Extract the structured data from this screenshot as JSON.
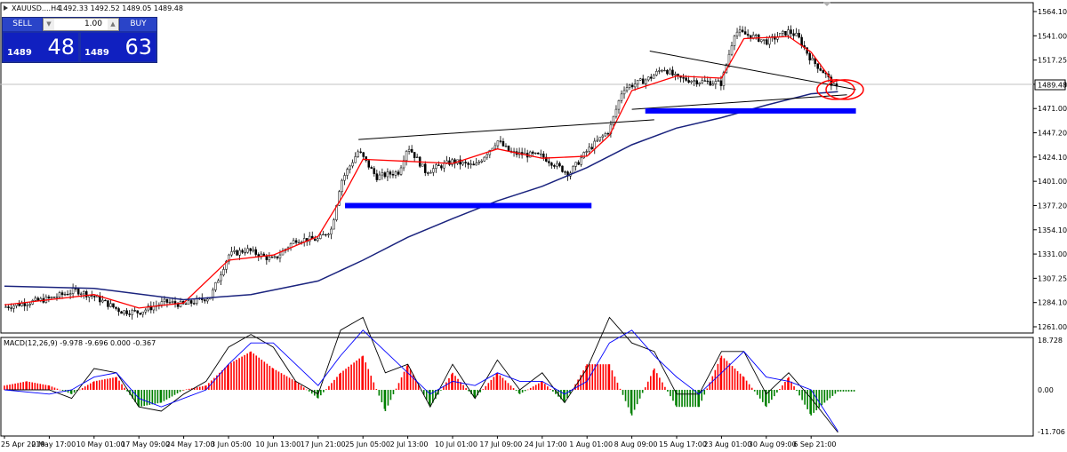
{
  "symbol_header": {
    "symbol": "XAUUSD....H4",
    "ohlc": "1492.33 1492.52 1489.05 1489.48"
  },
  "trade_panel": {
    "sell_label": "SELL",
    "buy_label": "BUY",
    "lot_value": "1.00",
    "sell_small": "1489",
    "sell_big": "48",
    "buy_small": "1489",
    "buy_big": "63"
  },
  "current_price_tag": "1489.48",
  "colors": {
    "fast_ma": "#ff0000",
    "slow_ma": "#1a237e",
    "trendline": "#000000",
    "support_zone": "#0000ff",
    "macd_positive": "#ff0000",
    "macd_negative": "#008000",
    "macd_line": "#000000",
    "signal_line": "#0000ff",
    "annotation": "#ff0000"
  },
  "chart_data": [
    {
      "type": "line",
      "title": "",
      "symbol": "XAUUSD",
      "timeframe": "H4",
      "ylim": [
        1261.0,
        1564.0
      ],
      "y_tick_labels": [
        "1564.10",
        "1541.00",
        "1517.25",
        "1494.10",
        "1471.00",
        "1447.20",
        "1424.10",
        "1401.00",
        "1377.20",
        "1354.10",
        "1331.00",
        "1307.25",
        "1284.10",
        "1261.00"
      ],
      "x_tick_labels": [
        "25 Apr 2019",
        "2 May 17:00",
        "10 May 01:00",
        "17 May 09:00",
        "24 May 17:00",
        "3 Jun 05:00",
        "10 Jun 13:00",
        "17 Jun 21:00",
        "25 Jun 05:00",
        "2 Jul 13:00",
        "10 Jul 01:00",
        "17 Jul 09:00",
        "24 Jul 17:00",
        "1 Aug 01:00",
        "8 Aug 09:00",
        "15 Aug 17:00",
        "23 Aug 01:00",
        "30 Aug 09:00",
        "6 Sep 21:00"
      ],
      "series": [],
      "price_path": [
        [
          0,
          1280
        ],
        [
          0.6,
          1285
        ],
        [
          1,
          1288
        ],
        [
          1.6,
          1296
        ],
        [
          2,
          1290
        ],
        [
          2.6,
          1276
        ],
        [
          3,
          1275
        ],
        [
          3.6,
          1285
        ],
        [
          4,
          1282
        ],
        [
          4.6,
          1290
        ],
        [
          5,
          1330
        ],
        [
          5.4,
          1335
        ],
        [
          6,
          1325
        ],
        [
          6.5,
          1345
        ],
        [
          7,
          1345
        ],
        [
          7.3,
          1355
        ],
        [
          7.5,
          1400
        ],
        [
          7.9,
          1430
        ],
        [
          8.3,
          1405
        ],
        [
          8.8,
          1410
        ],
        [
          9,
          1435
        ],
        [
          9.4,
          1410
        ],
        [
          10,
          1420
        ],
        [
          10.5,
          1415
        ],
        [
          11,
          1440
        ],
        [
          11.3,
          1428
        ],
        [
          12,
          1425
        ],
        [
          12.6,
          1408
        ],
        [
          13,
          1430
        ],
        [
          13.5,
          1450
        ],
        [
          13.8,
          1490
        ],
        [
          14.4,
          1500
        ],
        [
          14.7,
          1510
        ],
        [
          15,
          1500
        ],
        [
          15.5,
          1497
        ],
        [
          16,
          1495
        ],
        [
          16.3,
          1545
        ],
        [
          16.7,
          1540
        ],
        [
          17,
          1535
        ],
        [
          17.5,
          1545
        ],
        [
          17.7,
          1540
        ],
        [
          18,
          1518
        ],
        [
          18.3,
          1505
        ],
        [
          18.5,
          1492
        ],
        [
          18.6,
          1489.48
        ]
      ],
      "moving_averages": [
        {
          "kind": "fast",
          "values": [
            [
              0,
              1282
            ],
            [
              1,
              1287
            ],
            [
              2,
              1292
            ],
            [
              3,
              1279
            ],
            [
              4,
              1284
            ],
            [
              5,
              1325
            ],
            [
              6,
              1330
            ],
            [
              7,
              1348
            ],
            [
              7.6,
              1390
            ],
            [
              8,
              1422
            ],
            [
              9,
              1420
            ],
            [
              10,
              1418
            ],
            [
              11,
              1432
            ],
            [
              12,
              1423
            ],
            [
              13,
              1425
            ],
            [
              13.5,
              1445
            ],
            [
              14,
              1488
            ],
            [
              15,
              1502
            ],
            [
              16,
              1500
            ],
            [
              16.5,
              1538
            ],
            [
              17.5,
              1540
            ],
            [
              18,
              1525
            ],
            [
              18.5,
              1496
            ]
          ]
        },
        {
          "kind": "slow",
          "values": [
            [
              0,
              1300
            ],
            [
              2,
              1298
            ],
            [
              4,
              1287
            ],
            [
              5.5,
              1292
            ],
            [
              7,
              1305
            ],
            [
              8,
              1325
            ],
            [
              9,
              1347
            ],
            [
              10,
              1365
            ],
            [
              11,
              1382
            ],
            [
              12,
              1396
            ],
            [
              13,
              1414
            ],
            [
              14,
              1436
            ],
            [
              15,
              1452
            ],
            [
              16,
              1462
            ],
            [
              17,
              1474
            ],
            [
              18,
              1485
            ],
            [
              18.6,
              1487
            ]
          ]
        }
      ],
      "trendlines": [
        {
          "from": [
            7.9,
            1441
          ],
          "to": [
            14.5,
            1460
          ],
          "label": ""
        },
        {
          "from": [
            14.4,
            1526
          ],
          "to": [
            19.0,
            1489
          ],
          "label": ""
        },
        {
          "from": [
            14.0,
            1470
          ],
          "to": [
            18.8,
            1484
          ],
          "label": ""
        }
      ],
      "horizontal_zones": [
        {
          "y": 1377.5,
          "from": 7.6,
          "to": 13.1
        },
        {
          "y": 1468.5,
          "from": 14.3,
          "to": 19.0
        }
      ],
      "annotations": [
        {
          "shape": "ellipse",
          "at": [
            18.55,
            1489
          ],
          "label": ""
        },
        {
          "shape": "ellipse",
          "at": [
            18.75,
            1489
          ],
          "label": ""
        }
      ],
      "current_price": 1489.48
    },
    {
      "type": "bar",
      "title": "MACD(12,26,9) -9.978 -9.696 0.000 -0.367",
      "ylim": [
        -11.706,
        18.728
      ],
      "y_tick_labels": [
        "18.728",
        "0.00",
        "-11.706"
      ],
      "histogram": [
        [
          0,
          1
        ],
        [
          0.5,
          2
        ],
        [
          1,
          1
        ],
        [
          1.5,
          -1
        ],
        [
          2,
          2
        ],
        [
          2.5,
          3
        ],
        [
          3,
          -4
        ],
        [
          3.5,
          -3
        ],
        [
          4,
          0
        ],
        [
          4.5,
          1
        ],
        [
          5,
          6
        ],
        [
          5.5,
          9
        ],
        [
          6,
          5
        ],
        [
          6.5,
          2
        ],
        [
          7,
          -2
        ],
        [
          7.5,
          4
        ],
        [
          8,
          8
        ],
        [
          8.5,
          -5
        ],
        [
          9,
          6
        ],
        [
          9.5,
          -4
        ],
        [
          10,
          4
        ],
        [
          10.5,
          -2
        ],
        [
          11,
          4
        ],
        [
          11.5,
          -1
        ],
        [
          12,
          2
        ],
        [
          12.5,
          -3
        ],
        [
          13,
          6
        ],
        [
          13.5,
          6
        ],
        [
          14,
          -6
        ],
        [
          14.5,
          5
        ],
        [
          15,
          -4
        ],
        [
          15.5,
          -4
        ],
        [
          16,
          8
        ],
        [
          16.5,
          3
        ],
        [
          17,
          -4
        ],
        [
          17.5,
          3
        ],
        [
          18,
          -6
        ],
        [
          18.3,
          -3
        ],
        [
          18.6,
          -0.4
        ]
      ],
      "lines": [
        {
          "kind": "macd",
          "values": [
            [
              0,
              0
            ],
            [
              1,
              0
            ],
            [
              1.5,
              -2
            ],
            [
              2,
              5
            ],
            [
              2.5,
              4
            ],
            [
              3,
              -4
            ],
            [
              3.5,
              -5
            ],
            [
              4,
              -1
            ],
            [
              4.5,
              2
            ],
            [
              5,
              10
            ],
            [
              5.5,
              13
            ],
            [
              6,
              10
            ],
            [
              6.5,
              2
            ],
            [
              7,
              -1
            ],
            [
              7.5,
              14
            ],
            [
              8,
              17
            ],
            [
              8.5,
              4
            ],
            [
              9,
              6
            ],
            [
              9.5,
              -4
            ],
            [
              10,
              6
            ],
            [
              10.5,
              -2
            ],
            [
              11,
              7
            ],
            [
              11.5,
              0
            ],
            [
              12,
              4
            ],
            [
              12.5,
              -3
            ],
            [
              13,
              5
            ],
            [
              13.5,
              17
            ],
            [
              14,
              11
            ],
            [
              14.5,
              9
            ],
            [
              15,
              -1
            ],
            [
              15.5,
              -1
            ],
            [
              16,
              9
            ],
            [
              16.5,
              9
            ],
            [
              17,
              -1
            ],
            [
              17.5,
              4
            ],
            [
              18,
              -2
            ],
            [
              18.6,
              -10
            ]
          ]
        },
        {
          "kind": "signal",
          "values": [
            [
              0,
              0
            ],
            [
              1,
              -1
            ],
            [
              1.5,
              0
            ],
            [
              2,
              3
            ],
            [
              2.5,
              4
            ],
            [
              3,
              -2
            ],
            [
              3.5,
              -4
            ],
            [
              4,
              -2
            ],
            [
              4.5,
              0
            ],
            [
              5,
              6
            ],
            [
              5.5,
              11
            ],
            [
              6,
              11
            ],
            [
              6.5,
              6
            ],
            [
              7,
              1
            ],
            [
              7.5,
              8
            ],
            [
              8,
              14
            ],
            [
              8.5,
              9
            ],
            [
              9,
              4
            ],
            [
              9.5,
              -1
            ],
            [
              10,
              2
            ],
            [
              10.5,
              1
            ],
            [
              11,
              4
            ],
            [
              11.5,
              2
            ],
            [
              12,
              2
            ],
            [
              12.5,
              -1
            ],
            [
              13,
              2
            ],
            [
              13.5,
              11
            ],
            [
              14,
              14
            ],
            [
              14.5,
              8
            ],
            [
              15,
              3
            ],
            [
              15.5,
              -1
            ],
            [
              16,
              4
            ],
            [
              16.5,
              9
            ],
            [
              17,
              3
            ],
            [
              17.5,
              2
            ],
            [
              18,
              0
            ],
            [
              18.6,
              -9.7
            ]
          ]
        }
      ]
    }
  ]
}
